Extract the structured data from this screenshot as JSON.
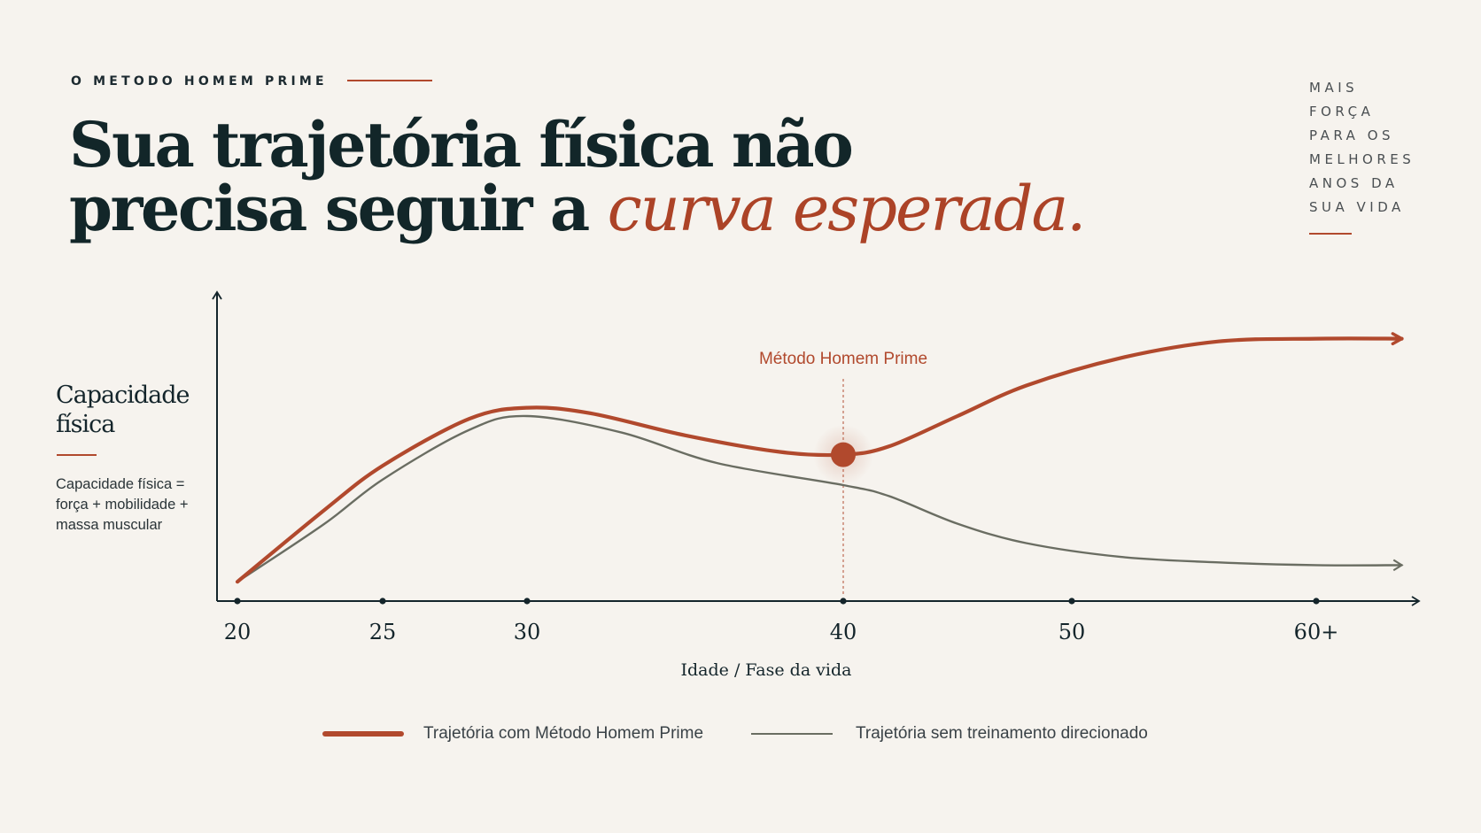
{
  "header": {
    "eyebrow": "O METODO HOMEM PRIME",
    "headline_part1": "Sua trajetória física não",
    "headline_part2": "precisa seguir a ",
    "headline_accent": "curva esperada."
  },
  "side_tag": [
    "MAIS",
    "FORÇA",
    "PARA OS",
    "MELHORES",
    "ANOS DA",
    "SUA VIDA"
  ],
  "colors": {
    "accent": "#b1492d",
    "baseline_series": "#6a6d62",
    "text": "#14252b",
    "background": "#f6f3ee"
  },
  "chart_data": {
    "type": "line",
    "ylabel": "Capacidade física",
    "ynote": "Capacidade física = força + mobilidade + massa muscular",
    "xlabel": "Idade / Fase da vida",
    "x_ticks": [
      20,
      25,
      30,
      40,
      50,
      60
    ],
    "x_tick_labels": [
      "20",
      "25",
      "30",
      "40",
      "50",
      "60+"
    ],
    "xlim": [
      20,
      63.5
    ],
    "ylim": [
      0,
      100
    ],
    "grid": false,
    "legend_position": "bottom-center",
    "series": [
      {
        "name": "Trajetória com Método Homem Prime",
        "color": "#b1492d",
        "x": [
          20,
          23,
          25,
          28,
          30,
          32,
          35,
          38,
          40,
          42,
          45,
          48,
          52,
          56,
          60,
          63.5
        ],
        "y": [
          7,
          33,
          49,
          66,
          70,
          68,
          60,
          54,
          53,
          56,
          67,
          78,
          88,
          94,
          95,
          95
        ]
      },
      {
        "name": "Trajetória sem treinamento direcionado",
        "color": "#6a6d62",
        "x": [
          20,
          23,
          25,
          28,
          30,
          33,
          36,
          40,
          42,
          45,
          48,
          52,
          56,
          60,
          63.5
        ],
        "y": [
          7,
          28,
          44,
          62,
          67,
          61,
          50,
          42,
          38,
          28,
          21,
          16,
          14,
          13,
          13
        ]
      }
    ],
    "annotations": [
      {
        "text": "Método Homem Prime",
        "x": 40,
        "y": 53
      }
    ]
  }
}
